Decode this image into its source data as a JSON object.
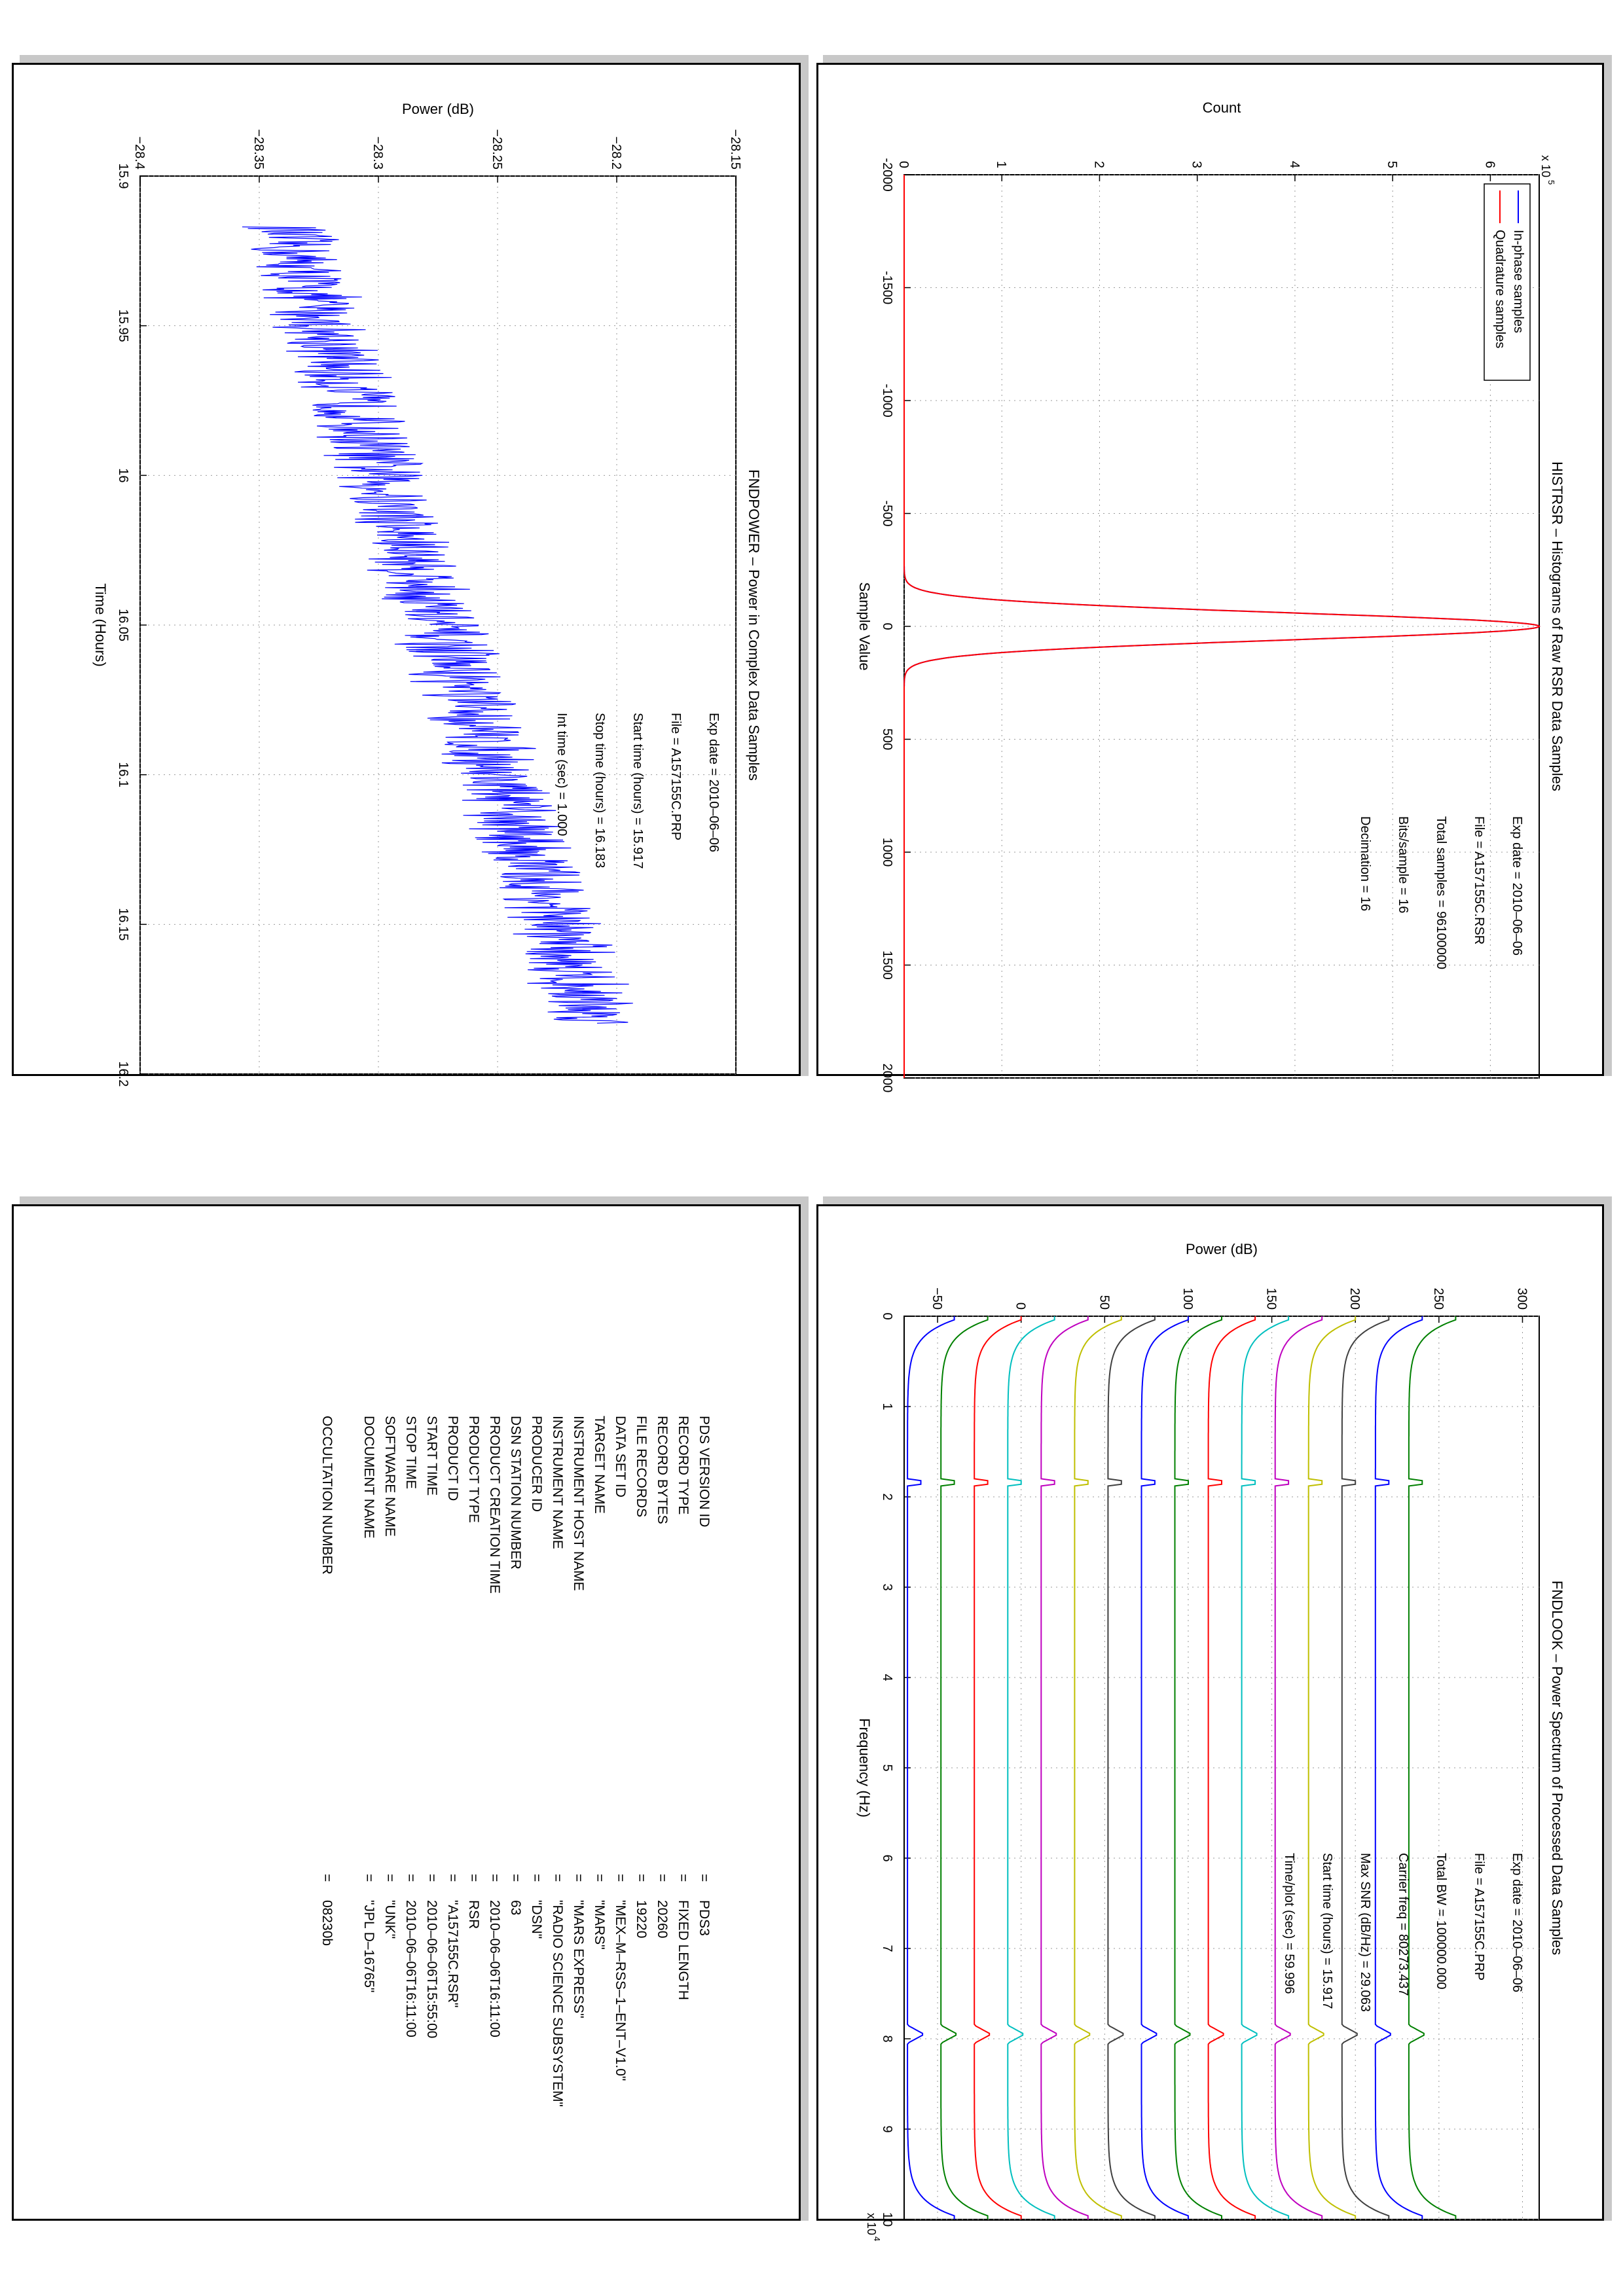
{
  "page": {
    "panels": [
      "hist",
      "power",
      "spectrum",
      "label"
    ]
  },
  "hist": {
    "chart_data": {
      "type": "line",
      "title": "HISTRSR – Histograms of Raw RSR Data Samples",
      "xlabel": "Sample Value",
      "ylabel": "Count",
      "xlim": [
        -2000,
        2000
      ],
      "ylim": [
        0,
        6.5
      ],
      "y_multiplier": "x 10^5",
      "x_ticks": [
        -2000,
        -1500,
        -1000,
        -500,
        0,
        500,
        1000,
        1500,
        2000
      ],
      "y_ticks": [
        0,
        1,
        2,
        3,
        4,
        5,
        6
      ],
      "grid": true,
      "legend_position": "top-left",
      "series": [
        {
          "name": "In-phase samples",
          "color": "#0000ff",
          "peak": 6.5,
          "sigma": 60
        },
        {
          "name": "Quadrature samples",
          "color": "#ff0000",
          "peak": 6.5,
          "sigma": 60
        }
      ],
      "annotations": [
        "Exp date = 2010–06–06",
        "File = A157155C.RSR",
        "Total samples =  96100000",
        "Bits/sample   =        16",
        "Decimation    =        16"
      ]
    }
  },
  "power": {
    "chart_data": {
      "type": "line",
      "title": "FNDPOWER – Power in Complex Data Samples",
      "xlabel": "Time (Hours)",
      "ylabel": "Power (dB)",
      "xlim": [
        15.9,
        16.2
      ],
      "ylim": [
        -28.4,
        -28.15
      ],
      "x_ticks": [
        15.9,
        15.95,
        16,
        16.05,
        16.1,
        16.15,
        16.2
      ],
      "y_ticks": [
        -28.4,
        -28.35,
        -28.3,
        -28.25,
        -28.2,
        -28.15
      ],
      "x_tick_labels": [
        "15.9",
        "15.95",
        "16",
        "16.05",
        "16.1",
        "16.15",
        "16.2"
      ],
      "y_tick_labels": [
        "−28.4",
        "−28.35",
        "−28.3",
        "−28.25",
        "−28.2",
        "−28.15"
      ],
      "grid": true,
      "series": [
        {
          "name": "",
          "color": "#0000ff",
          "x_start": 15.917,
          "x_end": 16.183,
          "y_start": -28.34,
          "y_end": -28.21,
          "noise": 0.015
        }
      ],
      "annotations": [
        "Exp date = 2010–06–06",
        "File = A157155C.PRP",
        "Start time (hours) = 15.917",
        "Stop time (hours) =  16.183",
        "Int time (sec)  =     1.000"
      ]
    }
  },
  "spectrum": {
    "chart_data": {
      "type": "line",
      "title": "FNDLOOK – Power Spectrum of Processed Data Samples",
      "xlabel": "Frequency (Hz)",
      "ylabel": "Power (dB)",
      "xlim": [
        0,
        10
      ],
      "x_multiplier": "x 10^4",
      "ylim": [
        -70,
        310
      ],
      "x_ticks": [
        0,
        1,
        2,
        3,
        4,
        5,
        6,
        7,
        8,
        9,
        10
      ],
      "y_ticks": [
        -50,
        0,
        50,
        100,
        150,
        200,
        250,
        300
      ],
      "y_tick_labels": [
        "−50",
        "0",
        "50",
        "100",
        "150",
        "200",
        "250",
        "300"
      ],
      "grid": true,
      "series_colors": [
        "#0000ff",
        "#008000",
        "#ff0000",
        "#00bfbf",
        "#bf00bf",
        "#bfbf00",
        "#404040",
        "#0000ff",
        "#008000",
        "#ff0000",
        "#00bfbf",
        "#bf00bf",
        "#bfbf00",
        "#404040",
        "#0000ff",
        "#008000"
      ],
      "series_offsets": [
        -60,
        -40,
        -20,
        0,
        20,
        40,
        60,
        80,
        100,
        120,
        140,
        160,
        180,
        200,
        220,
        240
      ],
      "annotations": [
        "Exp date = 2010–06–06",
        "File = A157155C.PRP",
        "Total BW =   100000.000",
        "Carrier freq =  80273.437",
        "Max SNR (dB/Hz) =    29.063",
        "Start time (hours) =   15.917",
        "Time/plot (sec) =    59.996"
      ]
    }
  },
  "label": {
    "rows": [
      {
        "key": "PDS VERSION ID",
        "value": "PDS3"
      },
      {
        "key": "RECORD TYPE",
        "value": "FIXED LENGTH"
      },
      {
        "key": "RECORD BYTES",
        "value": "20260"
      },
      {
        "key": "FILE RECORDS",
        "value": "19220"
      },
      {
        "key": "DATA SET ID",
        "value": "\"MEX–M–RSS–1–ENT–V1.0\""
      },
      {
        "key": "TARGET NAME",
        "value": "\"MARS\""
      },
      {
        "key": "INSTRUMENT HOST NAME",
        "value": "\"MARS EXPRESS\""
      },
      {
        "key": "INSTRUMENT NAME",
        "value": "\"RADIO SCIENCE SUBSYSTEM\""
      },
      {
        "key": "PRODUCER ID",
        "value": "\"DSN\""
      },
      {
        "key": "DSN STATION NUMBER",
        "value": "63"
      },
      {
        "key": "PRODUCT CREATION TIME",
        "value": "2010–06–06T16:11:00"
      },
      {
        "key": "PRODUCT TYPE",
        "value": "RSR"
      },
      {
        "key": "PRODUCT ID",
        "value": "\"A157155C.RSR\""
      },
      {
        "key": "START TIME",
        "value": "2010–06–06T15:55:00"
      },
      {
        "key": "STOP TIME",
        "value": "2010–06–06T16:11:00"
      },
      {
        "key": "SOFTWARE NAME",
        "value": "\"UNK\""
      },
      {
        "key": "DOCUMENT NAME",
        "value": "\"JPL D–16765\""
      },
      {
        "key": "",
        "value": ""
      },
      {
        "key": "OCCULTATION NUMBER",
        "value": "08230b"
      }
    ]
  }
}
